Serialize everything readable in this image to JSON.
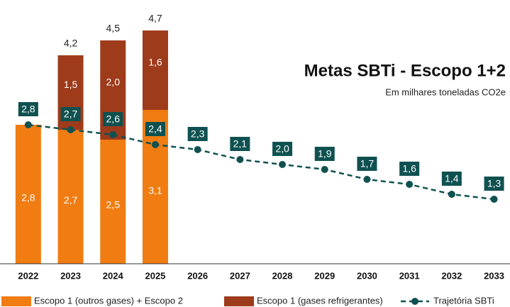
{
  "chart_data": {
    "type": "stacked-bar-line",
    "title": "Metas SBTi - Escopo 1+2",
    "subtitle": "Em milhares toneladas CO2e",
    "categories": [
      "2022",
      "2023",
      "2024",
      "2025",
      "2026",
      "2027",
      "2028",
      "2029",
      "2030",
      "2031",
      "2032",
      "2033"
    ],
    "ylim": [
      0,
      5.3
    ],
    "series": [
      {
        "name": "Escopo 1 (outros gases) + Escopo 2",
        "type": "bar",
        "color": "#f07c12",
        "values": [
          2.8,
          2.7,
          2.5,
          3.1,
          null,
          null,
          null,
          null,
          null,
          null,
          null,
          null
        ],
        "value_labels": [
          "2,8",
          "2,7",
          "2,5",
          "3,1",
          null,
          null,
          null,
          null,
          null,
          null,
          null,
          null
        ]
      },
      {
        "name": "Escopo 1 (gases refrigerantes)",
        "type": "bar",
        "color": "#9e3b1b",
        "values": [
          null,
          1.5,
          2.0,
          1.6,
          null,
          null,
          null,
          null,
          null,
          null,
          null,
          null
        ],
        "value_labels": [
          null,
          "1,5",
          "2,0",
          "1,6",
          null,
          null,
          null,
          null,
          null,
          null,
          null,
          null
        ]
      },
      {
        "name": "Trajetória SBTi",
        "type": "line",
        "color": "#0f5150",
        "values": [
          2.8,
          2.7,
          2.6,
          2.4,
          2.3,
          2.1,
          2.0,
          1.9,
          1.7,
          1.6,
          1.4,
          1.3
        ],
        "value_labels": [
          "2,8",
          "2,7",
          "2,6",
          "2,4",
          "2,3",
          "2,1",
          "2,0",
          "1,9",
          "1,7",
          "1,6",
          "1,4",
          "1,3"
        ]
      }
    ],
    "totals": [
      null,
      4.2,
      4.5,
      4.7,
      null,
      null,
      null,
      null,
      null,
      null,
      null,
      null
    ],
    "total_labels": [
      null,
      "4,2",
      "4,5",
      "4,7",
      null,
      null,
      null,
      null,
      null,
      null,
      null,
      null
    ]
  }
}
